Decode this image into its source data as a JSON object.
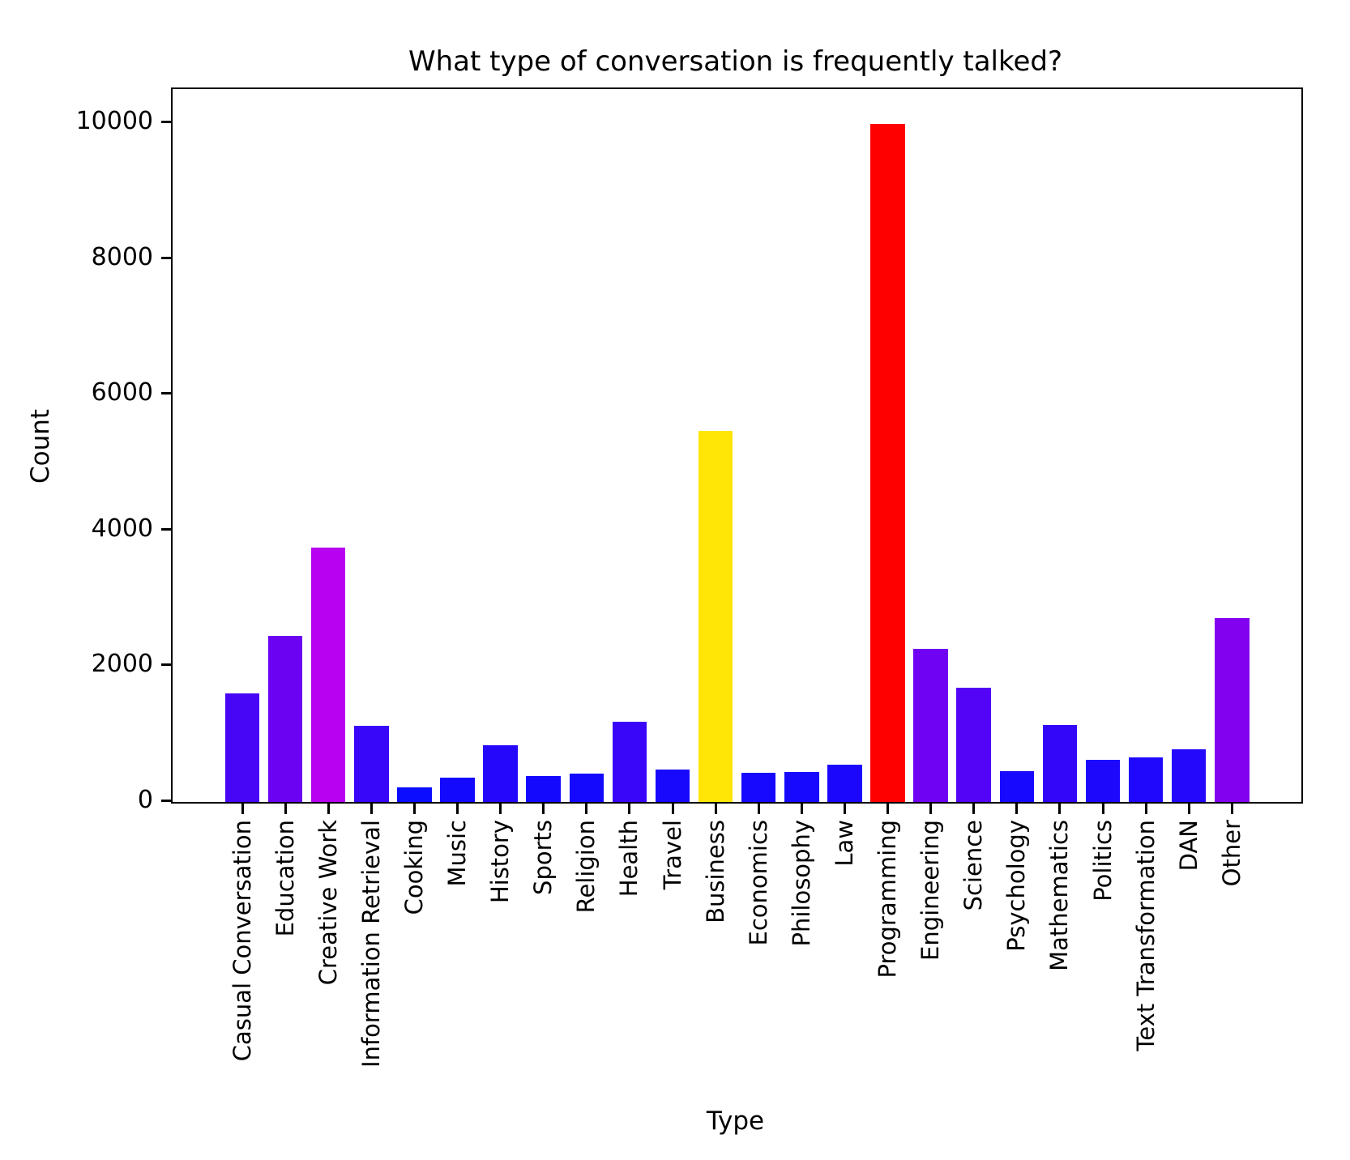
{
  "chart_data": {
    "type": "bar",
    "title": "What type of conversation is frequently talked?",
    "xlabel": "Type",
    "ylabel": "Count",
    "categories": [
      "Casual Conversation",
      "Education",
      "Creative Work",
      "Information Retrieval",
      "Cooking",
      "Music",
      "History",
      "Sports",
      "Religion",
      "Health",
      "Travel",
      "Business",
      "Economics",
      "Philosophy",
      "Law",
      "Programming",
      "Engineering",
      "Science",
      "Psychology",
      "Mathematics",
      "Politics",
      "Text Transformation",
      "DAN",
      "Other"
    ],
    "values": [
      1600,
      2450,
      3750,
      1120,
      215,
      355,
      840,
      385,
      415,
      1185,
      480,
      5460,
      430,
      440,
      550,
      9990,
      2260,
      1685,
      450,
      1130,
      620,
      660,
      775,
      2710
    ],
    "bar_colors": [
      "#4806f6",
      "#6b03f2",
      "#b801f0",
      "#3806f9",
      "#0a0dfe",
      "#1309fd",
      "#2508fb",
      "#1409fd",
      "#1509fd",
      "#3a06f9",
      "#1808fc",
      "#ffe606",
      "#1609fd",
      "#1609fd",
      "#1b08fc",
      "#fe0000",
      "#6f02f3",
      "#5304f7",
      "#1709fd",
      "#3306fa",
      "#1d08fc",
      "#1f08fc",
      "#2408fb",
      "#8202ef"
    ],
    "yticks": [
      0,
      2000,
      4000,
      6000,
      8000,
      10000
    ],
    "ylim": [
      0,
      10500
    ],
    "grid": false,
    "legend_position": "none",
    "axis_color": "#000000",
    "background_color": "#ffffff"
  }
}
